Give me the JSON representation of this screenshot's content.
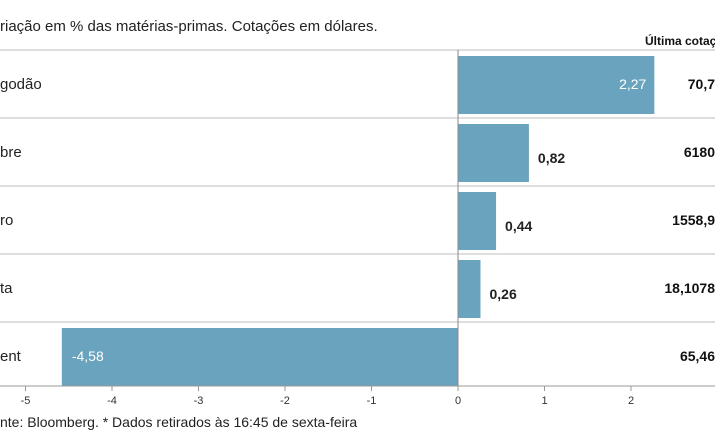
{
  "subtitle": "riação em % das matérias-primas. Cotações em dólares.",
  "last_quote_header": "Última cotaç",
  "source": "nte: Bloomberg.  * Dados retirados às 16:45 de sexta-feira",
  "colors": {
    "bar": "#6aa3bd",
    "separator": "#bdbdbd"
  },
  "chart_data": {
    "type": "bar",
    "orientation": "horizontal",
    "categories": [
      "godão",
      "bre",
      "ro",
      "ta",
      "ent"
    ],
    "values": [
      2.27,
      0.82,
      0.44,
      0.26,
      -4.58
    ],
    "value_labels": [
      "2,27",
      "0,82",
      "0,44",
      "0,26",
      "-4,58"
    ],
    "last_quotes": [
      "70,7",
      "6180",
      "1558,9",
      "18,1078",
      "65,46"
    ],
    "xlim": [
      -5,
      3
    ],
    "ticks": [
      -5,
      -4,
      -3,
      -2,
      -1,
      0,
      1,
      2
    ],
    "tick_labels": [
      "-5",
      "-4",
      "-3",
      "-2",
      "-1",
      "0",
      "1",
      "2"
    ],
    "grid": false
  }
}
